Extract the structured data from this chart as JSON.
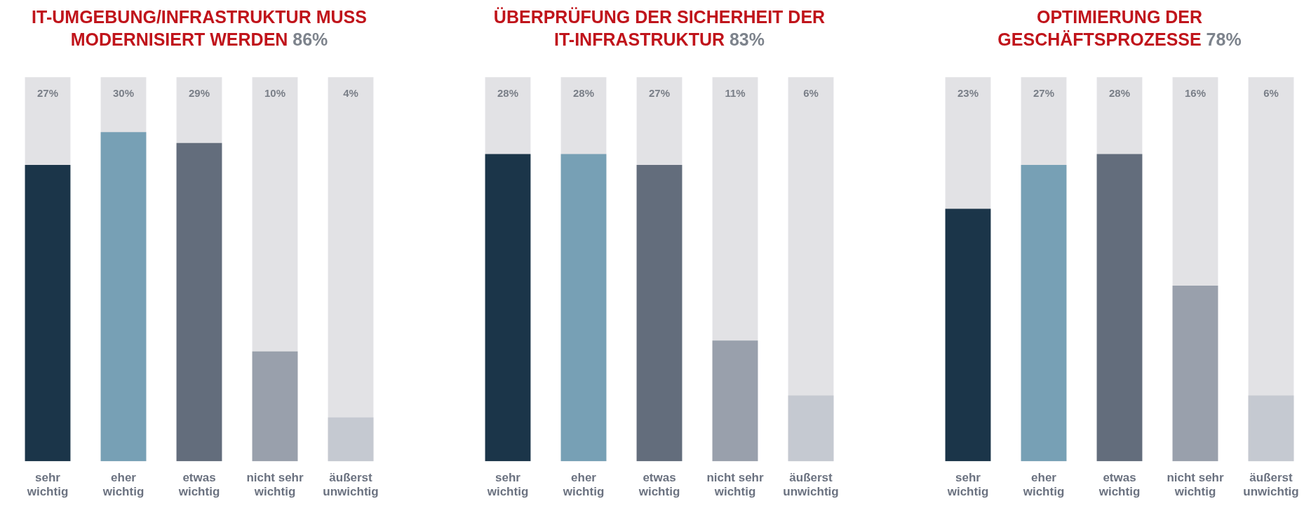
{
  "chart_data": [
    {
      "type": "bar",
      "title": "IT-UMGEBUNG/INFRASTRUKTUR MUSS MODERNISIERT WERDEN",
      "subtitle": "86%",
      "categories": [
        "sehr wichtig",
        "eher wichtig",
        "etwas wichtig",
        "nicht sehr wichtig",
        "äußerst unwichtig"
      ],
      "values": [
        27,
        30,
        29,
        10,
        4
      ],
      "value_labels": [
        "27%",
        "30%",
        "29%",
        "10%",
        "4%"
      ],
      "colors": [
        "#1b3549",
        "#77a0b5",
        "#636d7c",
        "#99a0ac",
        "#c5c9d1"
      ],
      "tick_labels": "x",
      "legend": false
    },
    {
      "type": "bar",
      "title": "ÜBERPRÜFUNG DER SICHERHEIT DER IT-INFRASTRUKTUR",
      "subtitle": "83%",
      "categories": [
        "sehr wichtig",
        "eher wichtig",
        "etwas wichtig",
        "nicht sehr wichtig",
        "äußerst unwichtig"
      ],
      "values": [
        28,
        28,
        27,
        11,
        6
      ],
      "value_labels": [
        "28%",
        "28%",
        "27%",
        "11%",
        "6%"
      ],
      "colors": [
        "#1b3549",
        "#77a0b5",
        "#636d7c",
        "#99a0ac",
        "#c5c9d1"
      ],
      "tick_labels": "x",
      "legend": false
    },
    {
      "type": "bar",
      "title": "OPTIMIERUNG DER GESCHÄFTSPROZESSE",
      "subtitle": "78%",
      "categories": [
        "sehr wichtig",
        "eher wichtig",
        "etwas wichtig",
        "nicht sehr wichtig",
        "äußerst unwichtig"
      ],
      "values": [
        23,
        27,
        28,
        16,
        6
      ],
      "value_labels": [
        "23%",
        "27%",
        "28%",
        "16%",
        "6%"
      ],
      "colors": [
        "#1b3549",
        "#77a0b5",
        "#636d7c",
        "#99a0ac",
        "#c5c9d1"
      ],
      "tick_labels": "x",
      "legend": false
    }
  ]
}
